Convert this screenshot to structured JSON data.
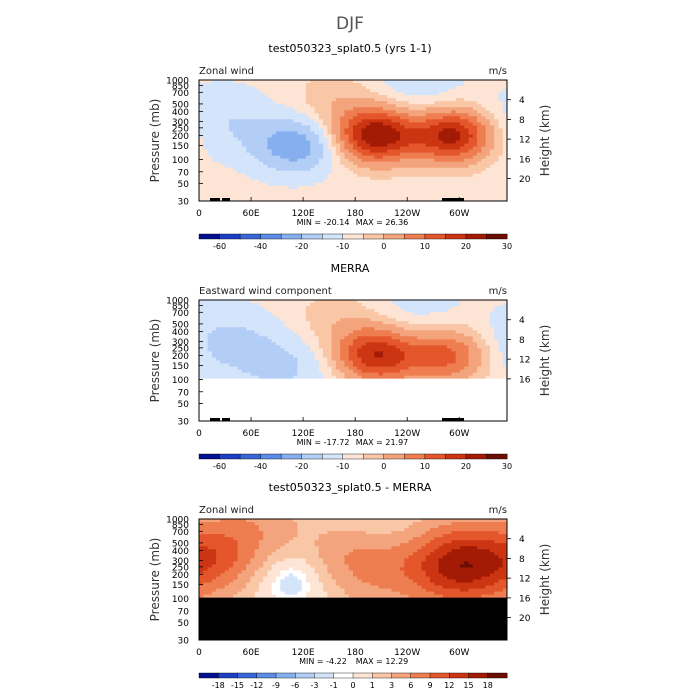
{
  "figure": {
    "title": "DJF"
  },
  "colors": {
    "blue_palette": [
      "#00108f",
      "#1d3fc4",
      "#3766d6",
      "#5b8ce6",
      "#86aff0",
      "#b2cdf6",
      "#d3e4fb"
    ],
    "red_palette": [
      "#fde4d4",
      "#f9c6a6",
      "#f4a47c",
      "#ee7d50",
      "#e4562b",
      "#cc3512",
      "#a31a05",
      "#6b0d02"
    ]
  },
  "chart_data": [
    {
      "type": "heatmap",
      "title": "test050323_splat0.5 (yrs 1-1)",
      "left_label": "Zonal wind",
      "right_label": "m/s",
      "ylabel": "Pressure (mb)",
      "ylabel_right": "Height (km)",
      "pressure_ticks": [
        "30",
        "50",
        "70",
        "100",
        "150",
        "200",
        "250",
        "300",
        "400",
        "500",
        "700",
        "850",
        "1000"
      ],
      "height_ticks": [
        "4",
        "8",
        "12",
        "16",
        "20"
      ],
      "lon_ticks": [
        "0",
        "60E",
        "120E",
        "180",
        "120W",
        "60W"
      ],
      "min_label": "MIN = -20.14",
      "max_label": "MAX = 26.36",
      "min": -20.14,
      "max": 26.36,
      "colorbar_levels": [
        "-60",
        "-40",
        "-20",
        "-10",
        "0",
        "10",
        "20",
        "30"
      ],
      "masked_upper": false,
      "masked_above_hpa": null,
      "features": [
        {
          "lon": 110,
          "p": 150,
          "value": -14
        },
        {
          "lon": 205,
          "p": 200,
          "value": 24
        },
        {
          "lon": 292,
          "p": 200,
          "value": 22
        },
        {
          "lon": 30,
          "p": 300,
          "value": -5
        },
        {
          "lon": 160,
          "p": 500,
          "value": 4
        },
        {
          "lon": 250,
          "p": 850,
          "value": -4
        }
      ]
    },
    {
      "type": "heatmap",
      "title": "MERRA",
      "left_label": "Eastward wind component",
      "right_label": "m/s",
      "ylabel": "Pressure (mb)",
      "ylabel_right": "Height (km)",
      "pressure_ticks": [
        "30",
        "50",
        "70",
        "100",
        "150",
        "200",
        "250",
        "300",
        "400",
        "500",
        "700",
        "850",
        "1000"
      ],
      "height_ticks": [
        "4",
        "8",
        "12",
        "16"
      ],
      "lon_ticks": [
        "0",
        "60E",
        "120E",
        "180",
        "120W",
        "60W"
      ],
      "min_label": "MIN = -17.72",
      "max_label": "MAX = 21.97",
      "min": -17.72,
      "max": 21.97,
      "colorbar_levels": [
        "-60",
        "-40",
        "-20",
        "-10",
        "0",
        "10",
        "20",
        "30"
      ],
      "masked_upper": true,
      "masked_above_hpa": 100,
      "features": [
        {
          "lon": 100,
          "p": 150,
          "value": -6
        },
        {
          "lon": 205,
          "p": 200,
          "value": 20
        },
        {
          "lon": 285,
          "p": 200,
          "value": 14
        },
        {
          "lon": 30,
          "p": 300,
          "value": -6
        },
        {
          "lon": 160,
          "p": 500,
          "value": 4
        },
        {
          "lon": 250,
          "p": 850,
          "value": -3
        }
      ]
    },
    {
      "type": "heatmap",
      "title": "test050323_splat0.5 - MERRA",
      "left_label": "Zonal wind",
      "right_label": "m/s",
      "ylabel": "Pressure (mb)",
      "ylabel_right": "Height (km)",
      "pressure_ticks": [
        "30",
        "50",
        "70",
        "100",
        "150",
        "200",
        "250",
        "300",
        "400",
        "500",
        "700",
        "850",
        "1000"
      ],
      "height_ticks": [
        "4",
        "8",
        "12",
        "16",
        "20"
      ],
      "lon_ticks": [
        "0",
        "60E",
        "120E",
        "180",
        "120W",
        "60W"
      ],
      "min_label": "MIN = -4.22",
      "max_label": "MAX = 12.29",
      "min": -4.22,
      "max": 12.29,
      "colorbar_levels": [
        "-18",
        "-15",
        "-12",
        "-9",
        "-6",
        "-3",
        "-1",
        "0",
        "1",
        "3",
        "6",
        "9",
        "12",
        "15",
        "18"
      ],
      "masked_upper": true,
      "masked_above_hpa": 100,
      "features": [
        {
          "lon": 15,
          "p": 300,
          "value": 8
        },
        {
          "lon": 105,
          "p": 200,
          "value": -4
        },
        {
          "lon": 175,
          "p": 350,
          "value": 5
        },
        {
          "lon": 225,
          "p": 200,
          "value": 6
        },
        {
          "lon": 235,
          "p": 200,
          "value": -3
        },
        {
          "lon": 300,
          "p": 200,
          "value": 10
        },
        {
          "lon": 300,
          "p": 400,
          "value": 7
        },
        {
          "lon": 60,
          "p": 700,
          "value": 4
        },
        {
          "lon": 200,
          "p": 850,
          "value": -2
        }
      ]
    }
  ]
}
